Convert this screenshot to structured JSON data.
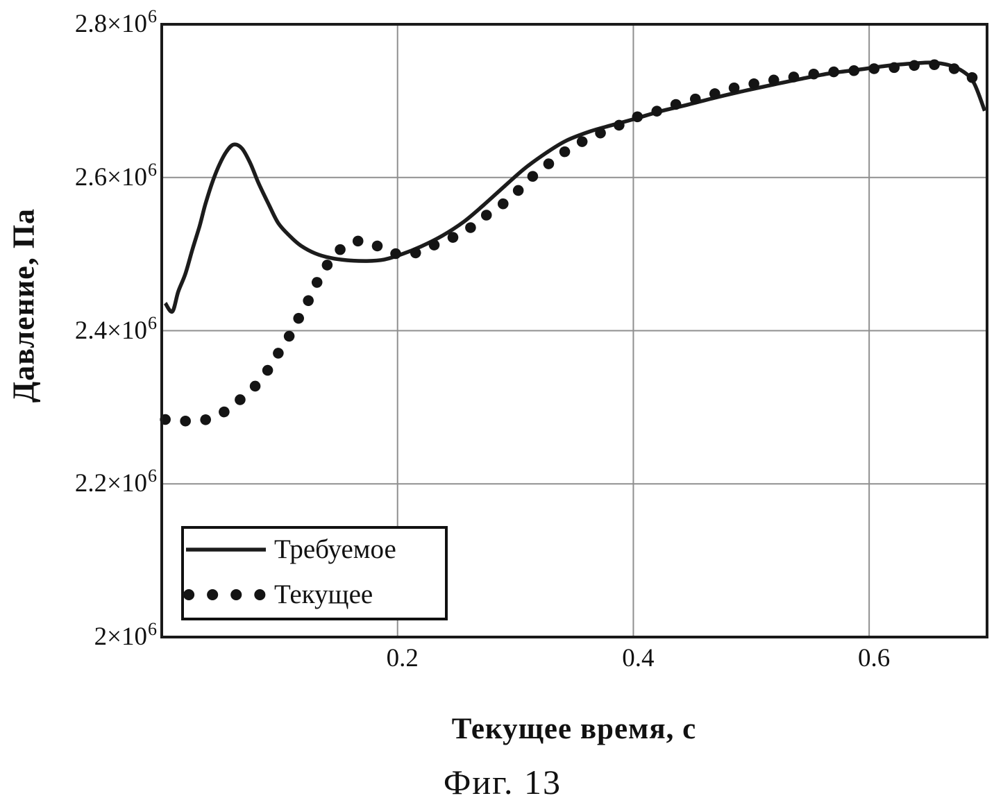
{
  "figure": {
    "caption": "Фиг. 13"
  },
  "chart_data": {
    "type": "line",
    "title": "",
    "xlabel": "Текущее время, с",
    "ylabel": "Давление, Па",
    "xlim": [
      0,
      0.7
    ],
    "ylim": [
      2000000,
      2800000
    ],
    "grid": true,
    "legend_position": "bottom-left",
    "colors": {
      "axis": "#1a1a1a",
      "grid": "#8f8f8f",
      "line": "#1c1c1c",
      "dots": "#141414",
      "background": "#ffffff"
    },
    "xticks": [
      {
        "value": 0.2,
        "label": "0.2"
      },
      {
        "value": 0.4,
        "label": "0.4"
      },
      {
        "value": 0.6,
        "label": "0.6"
      }
    ],
    "yticks": [
      {
        "value": 2800000,
        "mantissa": "2.8×10",
        "exponent": "6",
        "grid": false
      },
      {
        "value": 2600000,
        "mantissa": "2.6×10",
        "exponent": "6",
        "grid": true
      },
      {
        "value": 2400000,
        "mantissa": "2.4×10",
        "exponent": "6",
        "grid": true
      },
      {
        "value": 2200000,
        "mantissa": "2.2×10",
        "exponent": "6",
        "grid": true
      },
      {
        "value": 2000000,
        "mantissa": "2×10",
        "exponent": "6",
        "grid": false
      }
    ],
    "series": [
      {
        "name": "Требуемое",
        "style": "solid",
        "points": [
          [
            0.003,
            2436000
          ],
          [
            0.009,
            2425000
          ],
          [
            0.014,
            2451000
          ],
          [
            0.02,
            2474000
          ],
          [
            0.026,
            2506000
          ],
          [
            0.032,
            2536000
          ],
          [
            0.037,
            2565000
          ],
          [
            0.043,
            2594000
          ],
          [
            0.049,
            2617000
          ],
          [
            0.055,
            2634000
          ],
          [
            0.061,
            2643000
          ],
          [
            0.068,
            2638000
          ],
          [
            0.075,
            2619000
          ],
          [
            0.082,
            2593000
          ],
          [
            0.091,
            2564000
          ],
          [
            0.099,
            2540000
          ],
          [
            0.109,
            2523000
          ],
          [
            0.118,
            2511000
          ],
          [
            0.13,
            2501000
          ],
          [
            0.143,
            2495000
          ],
          [
            0.157,
            2492000
          ],
          [
            0.174,
            2491000
          ],
          [
            0.189,
            2493000
          ],
          [
            0.204,
            2500000
          ],
          [
            0.22,
            2510000
          ],
          [
            0.238,
            2524000
          ],
          [
            0.256,
            2542000
          ],
          [
            0.273,
            2564000
          ],
          [
            0.291,
            2589000
          ],
          [
            0.308,
            2612000
          ],
          [
            0.326,
            2632000
          ],
          [
            0.343,
            2648000
          ],
          [
            0.363,
            2660000
          ],
          [
            0.381,
            2668000
          ],
          [
            0.4,
            2676000
          ],
          [
            0.422,
            2686000
          ],
          [
            0.446,
            2695000
          ],
          [
            0.469,
            2704000
          ],
          [
            0.494,
            2713000
          ],
          [
            0.518,
            2721000
          ],
          [
            0.543,
            2729000
          ],
          [
            0.567,
            2736000
          ],
          [
            0.592,
            2741000
          ],
          [
            0.616,
            2746000
          ],
          [
            0.639,
            2749000
          ],
          [
            0.653,
            2750000
          ],
          [
            0.667,
            2747000
          ],
          [
            0.68,
            2738000
          ],
          [
            0.689,
            2723000
          ],
          [
            0.698,
            2687000
          ]
        ]
      },
      {
        "name": "Текущее",
        "style": "dotted",
        "points": [
          [
            0.003,
            2284000
          ],
          [
            0.02,
            2282000
          ],
          [
            0.038,
            2284000
          ],
          [
            0.053,
            2294000
          ],
          [
            0.065,
            2308000
          ],
          [
            0.077,
            2324000
          ],
          [
            0.087,
            2342000
          ],
          [
            0.095,
            2361000
          ],
          [
            0.103,
            2381000
          ],
          [
            0.111,
            2400000
          ],
          [
            0.118,
            2422000
          ],
          [
            0.126,
            2444000
          ],
          [
            0.133,
            2467000
          ],
          [
            0.14,
            2485000
          ],
          [
            0.15,
            2504000
          ],
          [
            0.162,
            2516000
          ],
          [
            0.177,
            2515000
          ],
          [
            0.19,
            2504000
          ],
          [
            0.201,
            2500000
          ],
          [
            0.212,
            2500000
          ],
          [
            0.225,
            2508000
          ],
          [
            0.239,
            2517000
          ],
          [
            0.253,
            2526000
          ],
          [
            0.266,
            2539000
          ],
          [
            0.278,
            2554000
          ],
          [
            0.289,
            2565000
          ],
          [
            0.301,
            2581000
          ],
          [
            0.312,
            2598000
          ],
          [
            0.325,
            2614000
          ],
          [
            0.336,
            2627000
          ],
          [
            0.348,
            2640000
          ],
          [
            0.361,
            2650000
          ],
          [
            0.375,
            2660000
          ],
          [
            0.389,
            2669000
          ],
          [
            0.403,
            2679000
          ],
          [
            0.417,
            2685000
          ],
          [
            0.431,
            2693000
          ],
          [
            0.449,
            2701000
          ],
          [
            0.466,
            2708000
          ],
          [
            0.483,
            2716000
          ],
          [
            0.501,
            2722000
          ],
          [
            0.518,
            2727000
          ],
          [
            0.535,
            2731000
          ],
          [
            0.553,
            2735000
          ],
          [
            0.571,
            2738000
          ],
          [
            0.592,
            2740000
          ],
          [
            0.611,
            2743000
          ],
          [
            0.629,
            2744000
          ],
          [
            0.648,
            2748000
          ],
          [
            0.667,
            2744000
          ],
          [
            0.682,
            2736000
          ],
          [
            0.694,
            2722000
          ]
        ]
      }
    ]
  }
}
